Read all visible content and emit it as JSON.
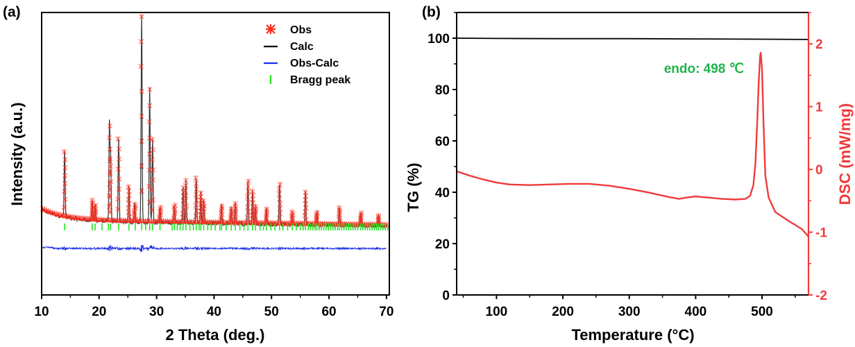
{
  "chart_data": [
    {
      "type": "scatter",
      "panel_label": "(a)",
      "xlabel": "2 Theta (deg.)",
      "ylabel": "Intensity (a.u.)",
      "xlim": [
        10,
        70.5
      ],
      "x_ticks": [
        10,
        20,
        30,
        40,
        50,
        60,
        70
      ],
      "y_tick_labels": "none",
      "legend_placement": "top-right",
      "series": [
        {
          "name": "Obs",
          "marker": "asterisk",
          "color": "#ff2a1a"
        },
        {
          "name": "Calc",
          "line": "solid",
          "color": "#000000"
        },
        {
          "name": "Obs-Calc",
          "line": "solid",
          "color": "#1a2ee6"
        },
        {
          "name": "Bragg peak",
          "marker": "tick",
          "color": "#22e622"
        }
      ],
      "peaks": [
        {
          "x": 14.0,
          "h": 0.26
        },
        {
          "x": 18.8,
          "h": 0.08
        },
        {
          "x": 19.3,
          "h": 0.06
        },
        {
          "x": 21.8,
          "h": 0.38
        },
        {
          "x": 22.0,
          "h": 0.25
        },
        {
          "x": 23.4,
          "h": 0.33
        },
        {
          "x": 25.2,
          "h": 0.14
        },
        {
          "x": 26.2,
          "h": 0.07
        },
        {
          "x": 27.4,
          "h": 0.82
        },
        {
          "x": 28.8,
          "h": 0.53
        },
        {
          "x": 29.3,
          "h": 0.33
        },
        {
          "x": 30.6,
          "h": 0.06
        },
        {
          "x": 33.1,
          "h": 0.07
        },
        {
          "x": 34.6,
          "h": 0.14
        },
        {
          "x": 35.1,
          "h": 0.17
        },
        {
          "x": 36.9,
          "h": 0.18
        },
        {
          "x": 37.7,
          "h": 0.12
        },
        {
          "x": 38.2,
          "h": 0.09
        },
        {
          "x": 41.3,
          "h": 0.07
        },
        {
          "x": 43.0,
          "h": 0.06
        },
        {
          "x": 43.7,
          "h": 0.08
        },
        {
          "x": 45.9,
          "h": 0.17
        },
        {
          "x": 46.7,
          "h": 0.13
        },
        {
          "x": 47.2,
          "h": 0.07
        },
        {
          "x": 49.1,
          "h": 0.06
        },
        {
          "x": 51.4,
          "h": 0.16
        },
        {
          "x": 53.6,
          "h": 0.05
        },
        {
          "x": 55.9,
          "h": 0.13
        },
        {
          "x": 57.9,
          "h": 0.05
        },
        {
          "x": 61.8,
          "h": 0.07
        },
        {
          "x": 65.5,
          "h": 0.05
        },
        {
          "x": 68.6,
          "h": 0.04
        }
      ],
      "bragg_positions": [
        14.0,
        18.8,
        19.3,
        20.5,
        21.6,
        22.0,
        23.4,
        25.2,
        26.3,
        27.4,
        28.1,
        28.8,
        29.3,
        30.6,
        32.7,
        33.1,
        33.6,
        34.1,
        34.6,
        35.1,
        35.8,
        36.4,
        36.9,
        37.4,
        37.7,
        38.2,
        38.9,
        39.5,
        40.2,
        41.0,
        41.3,
        42.1,
        43.0,
        43.7,
        44.5,
        45.2,
        45.9,
        46.7,
        47.2,
        48.0,
        48.6,
        49.1,
        49.9,
        50.6,
        51.4,
        52.0,
        52.8,
        53.6,
        54.3,
        55.0,
        55.5,
        55.9,
        56.4,
        56.8,
        57.2,
        57.6,
        57.9,
        58.3,
        58.7,
        59.1,
        59.5,
        59.9,
        60.3,
        60.7,
        61.1,
        61.5,
        61.8,
        62.2,
        62.6,
        63.0,
        63.4,
        63.8,
        64.2,
        64.6,
        65.0,
        65.5,
        65.9,
        66.3,
        66.7,
        67.1,
        67.5,
        67.9,
        68.3,
        68.6,
        69.0,
        69.4,
        69.8,
        70.2
      ]
    },
    {
      "type": "line",
      "panel_label": "(b)",
      "xlabel": "Temperature (°C)",
      "ylabel": "TG (%)",
      "y2label": "DSC (mW/mg)",
      "xlim": [
        40,
        570
      ],
      "x_ticks": [
        100,
        200,
        300,
        400,
        500
      ],
      "ylim": [
        0,
        110
      ],
      "y_ticks": [
        0,
        20,
        40,
        60,
        80,
        100
      ],
      "y2lim": [
        -2,
        2.5
      ],
      "y2_ticks": [
        -2,
        -1,
        0,
        1,
        2
      ],
      "right_axis_color": "#f03a3a",
      "annotation": {
        "text": "endo: 498 ℃",
        "color": "#1fb34a"
      },
      "series": [
        {
          "name": "TG",
          "axis": "left",
          "color": "#000000",
          "x": [
            40,
            100,
            200,
            300,
            400,
            500,
            570
          ],
          "y": [
            100.0,
            99.9,
            99.8,
            99.8,
            99.7,
            99.6,
            99.5
          ]
        },
        {
          "name": "DSC",
          "axis": "right",
          "color": "#ee3b3b",
          "x": [
            40,
            60,
            80,
            100,
            120,
            150,
            180,
            210,
            240,
            270,
            300,
            330,
            360,
            375,
            385,
            400,
            420,
            440,
            460,
            475,
            482,
            487,
            490,
            493,
            495,
            497,
            498,
            500,
            502,
            505,
            510,
            520,
            540,
            560,
            570
          ],
          "y": [
            -0.03,
            -0.1,
            -0.16,
            -0.21,
            -0.24,
            -0.25,
            -0.24,
            -0.23,
            -0.23,
            -0.26,
            -0.31,
            -0.37,
            -0.44,
            -0.47,
            -0.45,
            -0.43,
            -0.45,
            -0.47,
            -0.48,
            -0.47,
            -0.42,
            -0.25,
            0.1,
            0.8,
            1.4,
            1.8,
            1.86,
            1.6,
            0.8,
            -0.1,
            -0.45,
            -0.68,
            -0.82,
            -0.95,
            -1.07
          ]
        }
      ]
    }
  ]
}
